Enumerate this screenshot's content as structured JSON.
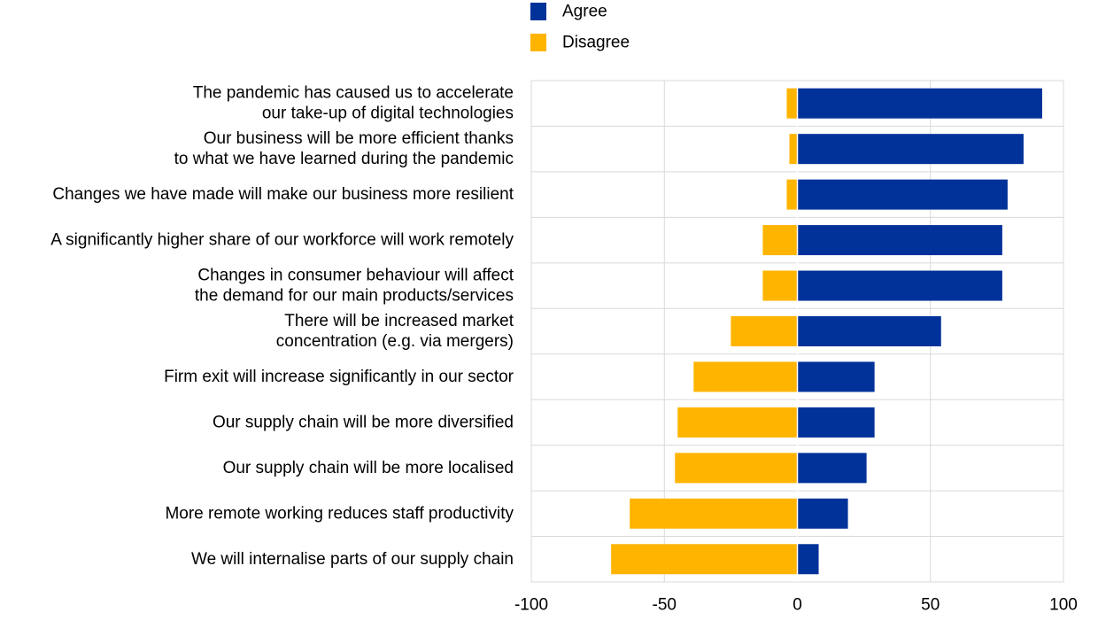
{
  "chart_data": {
    "type": "bar",
    "orientation": "horizontal",
    "stacked": "diverging",
    "title": "",
    "xlabel": "",
    "ylabel": "",
    "xlim": [
      -100,
      100
    ],
    "xticks": [
      -100,
      -50,
      0,
      50,
      100
    ],
    "tick_labels": [
      "-100",
      "-50",
      "0",
      "50",
      "100"
    ],
    "grid": true,
    "legend_position": "top-center",
    "categories": [
      [
        "The pandemic has caused us to accelerate",
        "our take-up of digital technologies"
      ],
      [
        "Our business will be more efficient thanks",
        "to what we have learned during the pandemic"
      ],
      [
        "Changes we have made will make our business more resilient"
      ],
      [
        "A significantly higher share of our workforce will work remotely"
      ],
      [
        "Changes in consumer behaviour will affect",
        "the demand for our main products/services"
      ],
      [
        "There will be increased market",
        "concentration (e.g. via mergers)"
      ],
      [
        "Firm exit will increase significantly in our sector"
      ],
      [
        "Our supply chain will be more diversified"
      ],
      [
        "Our supply chain will be more localised"
      ],
      [
        "More remote working reduces staff productivity"
      ],
      [
        "We will internalise parts of our supply chain"
      ]
    ],
    "series": [
      {
        "name": "Agree",
        "color": "#003299",
        "values": [
          92,
          85,
          79,
          77,
          77,
          54,
          29,
          29,
          26,
          19,
          8
        ]
      },
      {
        "name": "Disagree",
        "color": "#FFB400",
        "values": [
          -4,
          -3,
          -4,
          -13,
          -13,
          -25,
          -39,
          -45,
          -46,
          -63,
          -70
        ]
      }
    ]
  }
}
